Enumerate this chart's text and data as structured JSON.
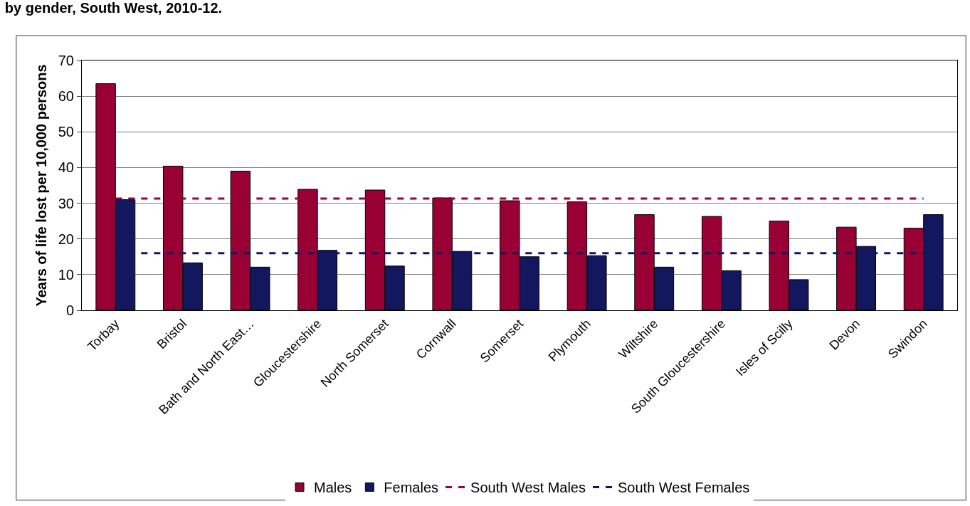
{
  "chart_data": {
    "type": "bar",
    "title": "by gender, South West, 2010-12.",
    "ylabel": "Years of life lost per 10,000 persons",
    "categories": [
      "Torbay",
      "Bristol",
      "Bath and North East…",
      "Gloucestershire",
      "North Somerset",
      "Cornwall",
      "Somerset",
      "Plymouth",
      "Wiltshire",
      "South Gloucestershire",
      "Isles of Scilly",
      "Devon",
      "Swindon"
    ],
    "series": [
      {
        "name": "Males",
        "color": "#990033",
        "values": [
          63.5,
          40.4,
          39,
          33.9,
          33.7,
          31.5,
          30.7,
          30.4,
          26.8,
          26.3,
          25,
          23.3,
          23
        ]
      },
      {
        "name": "Females",
        "color": "#13175e",
        "values": [
          31,
          13.3,
          12.1,
          16.8,
          12.4,
          16.5,
          15,
          15.3,
          12.1,
          11.1,
          8.6,
          17.9,
          26.8
        ]
      },
      {
        "name": "South West Males",
        "type": "line",
        "color": "#990033",
        "line_style": "dashed",
        "marker": "none",
        "values": [
          31.3,
          31.3,
          31.3,
          31.3,
          31.3,
          31.3,
          31.3,
          31.3,
          31.3,
          31.3,
          31.3,
          31.3,
          31.3
        ]
      },
      {
        "name": "South West Females",
        "type": "line",
        "color": "#13175e",
        "line_style": "dashed",
        "marker": "none",
        "values": [
          16,
          16,
          16,
          16,
          16,
          16,
          16,
          16,
          16,
          16,
          16,
          16,
          16
        ]
      }
    ],
    "ylim": [
      0,
      70
    ],
    "yticks": [
      0,
      10,
      20,
      30,
      40,
      50,
      60,
      70
    ],
    "grid": "y",
    "legend": "bottom"
  }
}
